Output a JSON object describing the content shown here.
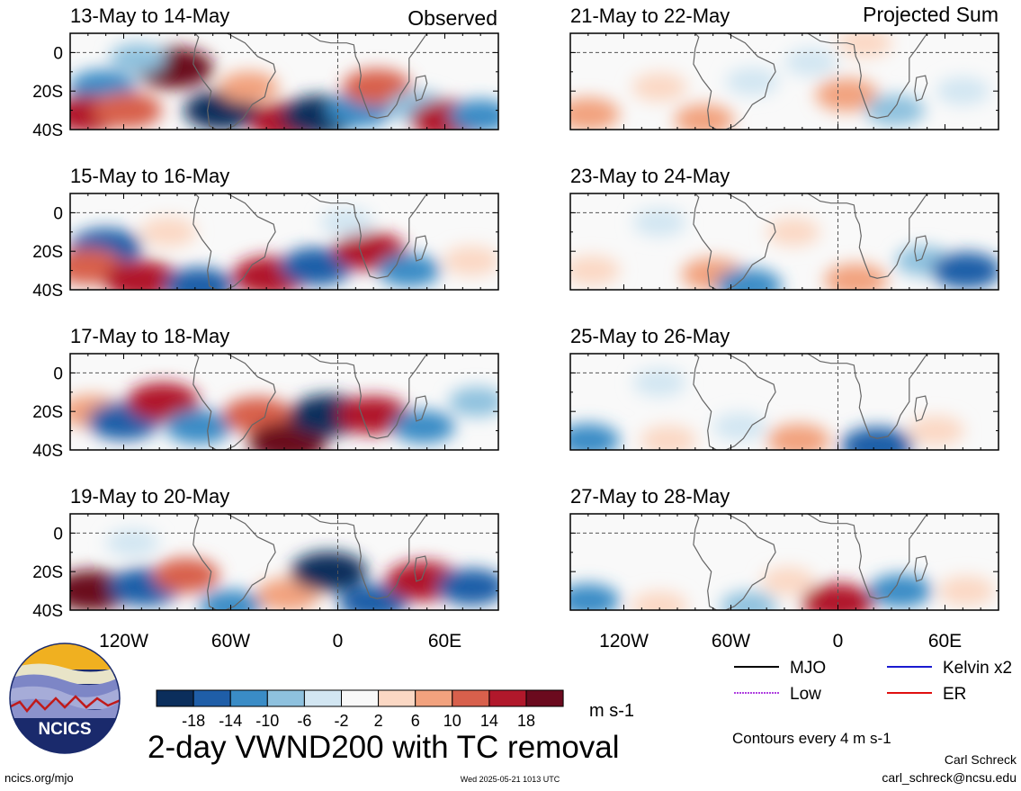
{
  "chart_data": {
    "type": "heatmap",
    "title": "2-day VWND200 with TC removal",
    "variable": "VWND200",
    "units": "m s-1",
    "contour_note": "Contours every 4 m s-1",
    "colorbar": {
      "labels": [
        "-18",
        "-14",
        "-10",
        "-6",
        "-2",
        "2",
        "6",
        "10",
        "14",
        "18"
      ],
      "colors": [
        "#0b2e5c",
        "#1f5ea8",
        "#3a8cc6",
        "#8ec1de",
        "#d2e6f2",
        "#f9f9f9",
        "#fbd8c4",
        "#f2a27e",
        "#d8604c",
        "#b1182b",
        "#6b0a1e"
      ]
    },
    "x_ticks": [
      "120W",
      "60W",
      "0",
      "60E"
    ],
    "x_tick_values": [
      -120,
      -60,
      0,
      60
    ],
    "y_ticks": [
      "0",
      "20S",
      "40S"
    ],
    "y_tick_values": [
      0,
      -20,
      -40
    ],
    "xlim": [
      -150,
      90
    ],
    "ylim": [
      -40,
      10
    ],
    "columns": [
      {
        "label": "Observed",
        "panels": [
          {
            "title": "13-May to 14-May",
            "cells": [
              {
                "lon": -132,
                "lat": -18,
                "v": -12
              },
              {
                "lon": -140,
                "lat": -32,
                "v": 16
              },
              {
                "lon": -118,
                "lat": -30,
                "v": 14
              },
              {
                "lon": -92,
                "lat": -8,
                "v": 20
              },
              {
                "lon": -65,
                "lat": -30,
                "v": -18
              },
              {
                "lon": -50,
                "lat": -18,
                "v": 8
              },
              {
                "lon": -28,
                "lat": -36,
                "v": 18
              },
              {
                "lon": -10,
                "lat": -33,
                "v": -20
              },
              {
                "lon": 12,
                "lat": -30,
                "v": -12
              },
              {
                "lon": 22,
                "lat": -18,
                "v": 14
              },
              {
                "lon": 45,
                "lat": -28,
                "v": -8
              },
              {
                "lon": 62,
                "lat": -35,
                "v": 18
              },
              {
                "lon": 80,
                "lat": -33,
                "v": -10
              },
              {
                "lon": -112,
                "lat": -3,
                "v": -6
              }
            ]
          },
          {
            "title": "15-May to 16-May",
            "cells": [
              {
                "lon": -130,
                "lat": -18,
                "v": -16
              },
              {
                "lon": -140,
                "lat": -28,
                "v": 14
              },
              {
                "lon": -110,
                "lat": -35,
                "v": 18
              },
              {
                "lon": -78,
                "lat": -38,
                "v": -14
              },
              {
                "lon": -38,
                "lat": -33,
                "v": 18
              },
              {
                "lon": -12,
                "lat": -28,
                "v": -16
              },
              {
                "lon": 18,
                "lat": -20,
                "v": 16
              },
              {
                "lon": 40,
                "lat": -30,
                "v": -10
              },
              {
                "lon": -95,
                "lat": -10,
                "v": 6
              },
              {
                "lon": 5,
                "lat": -5,
                "v": -4
              },
              {
                "lon": 75,
                "lat": -25,
                "v": 6
              }
            ]
          },
          {
            "title": "17-May to 18-May",
            "cells": [
              {
                "lon": -138,
                "lat": -20,
                "v": 10
              },
              {
                "lon": -120,
                "lat": -25,
                "v": -16
              },
              {
                "lon": -98,
                "lat": -15,
                "v": 16
              },
              {
                "lon": -78,
                "lat": -28,
                "v": -12
              },
              {
                "lon": -45,
                "lat": -22,
                "v": 14
              },
              {
                "lon": -28,
                "lat": -36,
                "v": 20
              },
              {
                "lon": -5,
                "lat": -22,
                "v": -20
              },
              {
                "lon": 20,
                "lat": -22,
                "v": 16
              },
              {
                "lon": 48,
                "lat": -28,
                "v": -10
              },
              {
                "lon": 78,
                "lat": -15,
                "v": -6
              }
            ]
          },
          {
            "title": "19-May to 20-May",
            "cells": [
              {
                "lon": -138,
                "lat": -30,
                "v": 20
              },
              {
                "lon": -108,
                "lat": -28,
                "v": -16
              },
              {
                "lon": -85,
                "lat": -22,
                "v": 12
              },
              {
                "lon": -60,
                "lat": -38,
                "v": -10
              },
              {
                "lon": -28,
                "lat": -32,
                "v": 10
              },
              {
                "lon": -5,
                "lat": -20,
                "v": -18
              },
              {
                "lon": 20,
                "lat": -36,
                "v": -14
              },
              {
                "lon": 48,
                "lat": -25,
                "v": 18
              },
              {
                "lon": 75,
                "lat": -28,
                "v": -14
              },
              {
                "lon": -115,
                "lat": -5,
                "v": -4
              }
            ]
          }
        ]
      },
      {
        "label": "Projected Sum",
        "panels": [
          {
            "title": "21-May to 22-May",
            "cells": [
              {
                "lon": -140,
                "lat": -32,
                "v": 10
              },
              {
                "lon": -100,
                "lat": -18,
                "v": 5
              },
              {
                "lon": -75,
                "lat": -35,
                "v": 8
              },
              {
                "lon": -48,
                "lat": -15,
                "v": -4
              },
              {
                "lon": -15,
                "lat": -5,
                "v": -4
              },
              {
                "lon": 5,
                "lat": -22,
                "v": 10
              },
              {
                "lon": 32,
                "lat": -30,
                "v": -8
              },
              {
                "lon": 70,
                "lat": -20,
                "v": -4
              },
              {
                "lon": 15,
                "lat": 5,
                "v": 5
              }
            ]
          },
          {
            "title": "23-May to 24-May",
            "cells": [
              {
                "lon": -138,
                "lat": -30,
                "v": 6
              },
              {
                "lon": -70,
                "lat": -32,
                "v": 10
              },
              {
                "lon": -50,
                "lat": -38,
                "v": -12
              },
              {
                "lon": -25,
                "lat": -10,
                "v": 4
              },
              {
                "lon": 10,
                "lat": -35,
                "v": 10
              },
              {
                "lon": 48,
                "lat": -25,
                "v": -6
              },
              {
                "lon": 72,
                "lat": -30,
                "v": -14
              },
              {
                "lon": -100,
                "lat": -5,
                "v": -4
              }
            ]
          },
          {
            "title": "25-May to 26-May",
            "cells": [
              {
                "lon": -140,
                "lat": -35,
                "v": -10
              },
              {
                "lon": -95,
                "lat": -35,
                "v": 6
              },
              {
                "lon": -55,
                "lat": -28,
                "v": -4
              },
              {
                "lon": -22,
                "lat": -35,
                "v": 10
              },
              {
                "lon": 22,
                "lat": -38,
                "v": -16
              },
              {
                "lon": 55,
                "lat": -30,
                "v": 6
              },
              {
                "lon": -100,
                "lat": -5,
                "v": -4
              }
            ]
          },
          {
            "title": "27-May to 28-May",
            "cells": [
              {
                "lon": -140,
                "lat": -35,
                "v": -10
              },
              {
                "lon": -100,
                "lat": -38,
                "v": 6
              },
              {
                "lon": -50,
                "lat": -38,
                "v": -6
              },
              {
                "lon": -28,
                "lat": -25,
                "v": 4
              },
              {
                "lon": 0,
                "lat": -36,
                "v": 16
              },
              {
                "lon": 35,
                "lat": -30,
                "v": -10
              },
              {
                "lon": 72,
                "lat": -30,
                "v": 6
              }
            ]
          }
        ]
      }
    ],
    "legend": [
      {
        "name": "MJO",
        "color": "#000000"
      },
      {
        "name": "Kelvin x2",
        "color": "#1a1ad0"
      },
      {
        "name": "Low",
        "color": "#b040e0"
      },
      {
        "name": "ER",
        "color": "#e01010"
      }
    ]
  },
  "logo": {
    "text": "NCICS"
  },
  "footer": {
    "left": "ncics.org/mjo",
    "center": "Wed 2025-05-21 1013 UTC",
    "author": "Carl Schreck",
    "email": "carl_schreck@ncsu.edu"
  }
}
